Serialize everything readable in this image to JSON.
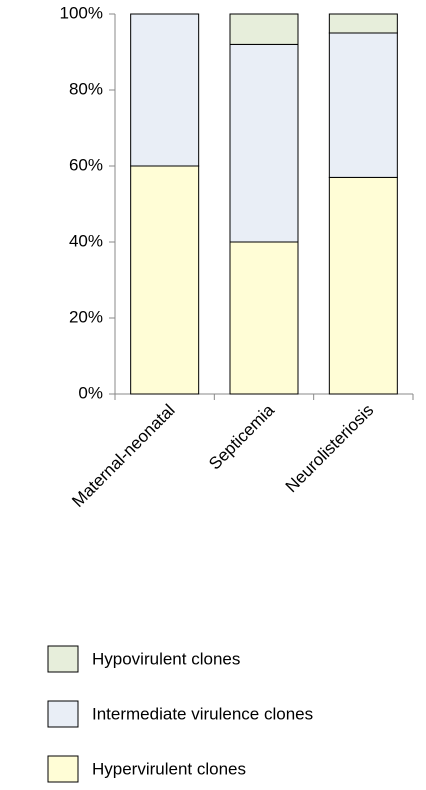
{
  "chart_data": {
    "type": "stacked_bar",
    "categories": [
      "Maternal-neonatal",
      "Septicemia",
      "Neurolisteriosis"
    ],
    "series": [
      {
        "name": "Hypervirulent clones",
        "color": "#fffdd6",
        "values": [
          60,
          40,
          57
        ]
      },
      {
        "name": "Intermediate virulence clones",
        "color": "#e9eef6",
        "values": [
          40,
          52,
          38
        ]
      },
      {
        "name": "Hypovirulent clones",
        "color": "#e7eedb",
        "values": [
          0,
          8,
          5
        ]
      }
    ],
    "ylim": [
      0,
      100
    ],
    "yticks": [
      {
        "value": 0,
        "label": "0%"
      },
      {
        "value": 20,
        "label": "20%"
      },
      {
        "value": 40,
        "label": "40%"
      },
      {
        "value": 60,
        "label": "60%"
      },
      {
        "value": 80,
        "label": "80%"
      },
      {
        "value": 100,
        "label": "100%"
      }
    ],
    "grid": false
  }
}
